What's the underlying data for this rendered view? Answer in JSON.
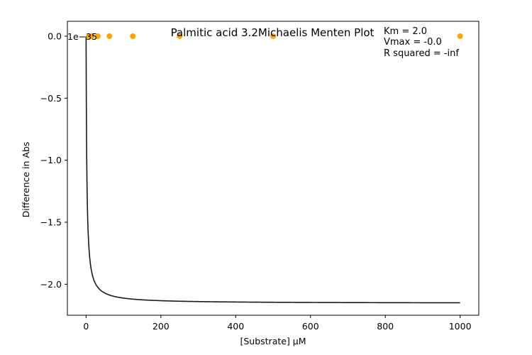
{
  "chart_data": {
    "type": "scatter",
    "title": "Palmitic acid 3.2Michaelis Menten Plot",
    "xlabel": "[Substrate] μM",
    "ylabel": "Difference in Abs",
    "offset_label": "1e−35",
    "xlim": [
      -50,
      1050
    ],
    "ylim": [
      -2.25,
      0.12
    ],
    "xticks": [
      0,
      200,
      400,
      600,
      800,
      1000
    ],
    "xtick_labels": [
      "0",
      "200",
      "400",
      "600",
      "800",
      "1000"
    ],
    "yticks": [
      0.0,
      -0.5,
      -1.0,
      -1.5,
      -2.0
    ],
    "ytick_labels": [
      "0.0",
      "−0.5",
      "−1.0",
      "−1.5",
      "−2.0"
    ],
    "grid": false,
    "series": [
      {
        "kind": "points",
        "color": "#ffa500",
        "x": [
          7.8,
          15.6,
          31.25,
          62.5,
          125,
          250,
          500,
          1000
        ],
        "y": [
          0,
          0,
          0,
          0,
          0,
          0,
          0,
          0
        ]
      },
      {
        "kind": "fit-curve",
        "color": "#1a1a1a",
        "model": "michaelis-menten",
        "vmax": -2.154,
        "km": 2.0,
        "x_range": [
          0,
          1000
        ]
      }
    ],
    "annotations": [
      "Km = 2.0",
      "Vmax = -0.0",
      "R squared = -inf"
    ]
  }
}
